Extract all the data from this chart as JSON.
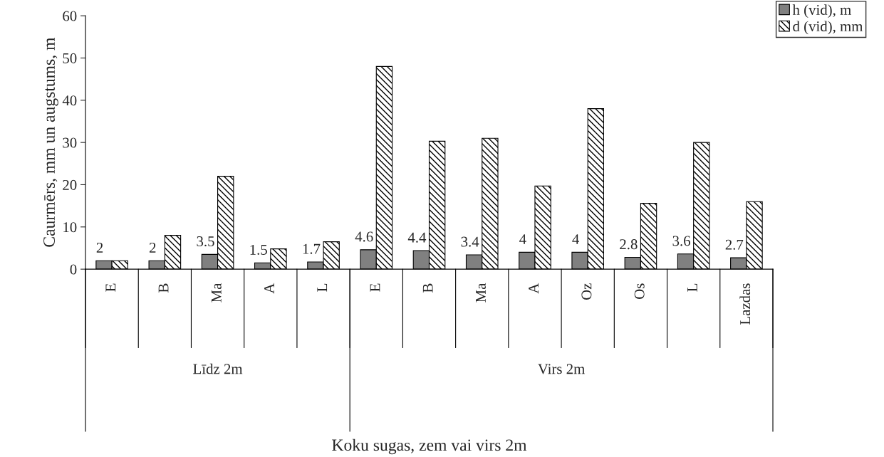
{
  "chart_data": {
    "type": "bar",
    "ylabel": "Caurmērs, mm un augstums, m",
    "categories": [
      "E",
      "B",
      "Ma",
      "A",
      "L",
      "E",
      "B",
      "Ma",
      "A",
      "Oz",
      "Os",
      "L",
      "Lazdas"
    ],
    "series": [
      {
        "name": "h (vid), m",
        "color": "#808080",
        "values": [
          2,
          2,
          3.5,
          1.5,
          1.7,
          4.6,
          4.4,
          3.4,
          4,
          4,
          2.8,
          3.6,
          2.7
        ],
        "value_labels": [
          "2",
          "2",
          "3.5",
          "1.5",
          "1.7",
          "4.6",
          "4.4",
          "3.4",
          "4",
          "4",
          "2.8",
          "3.6",
          "2.7"
        ]
      },
      {
        "name": "d (vid), mm",
        "color": "#000000",
        "values": [
          2,
          8,
          22,
          4.8,
          6.5,
          48,
          30.3,
          31,
          19.7,
          38,
          15.6,
          30,
          16
        ]
      }
    ],
    "annotations": [
      "Līdz 2m",
      "Virs 2m",
      "Koku sugas, zem vai virs 2m"
    ],
    "ylim": [
      0,
      60
    ],
    "yticks": [
      0,
      10,
      20,
      30,
      40,
      50,
      60
    ],
    "grid": false,
    "legend": "top right"
  }
}
